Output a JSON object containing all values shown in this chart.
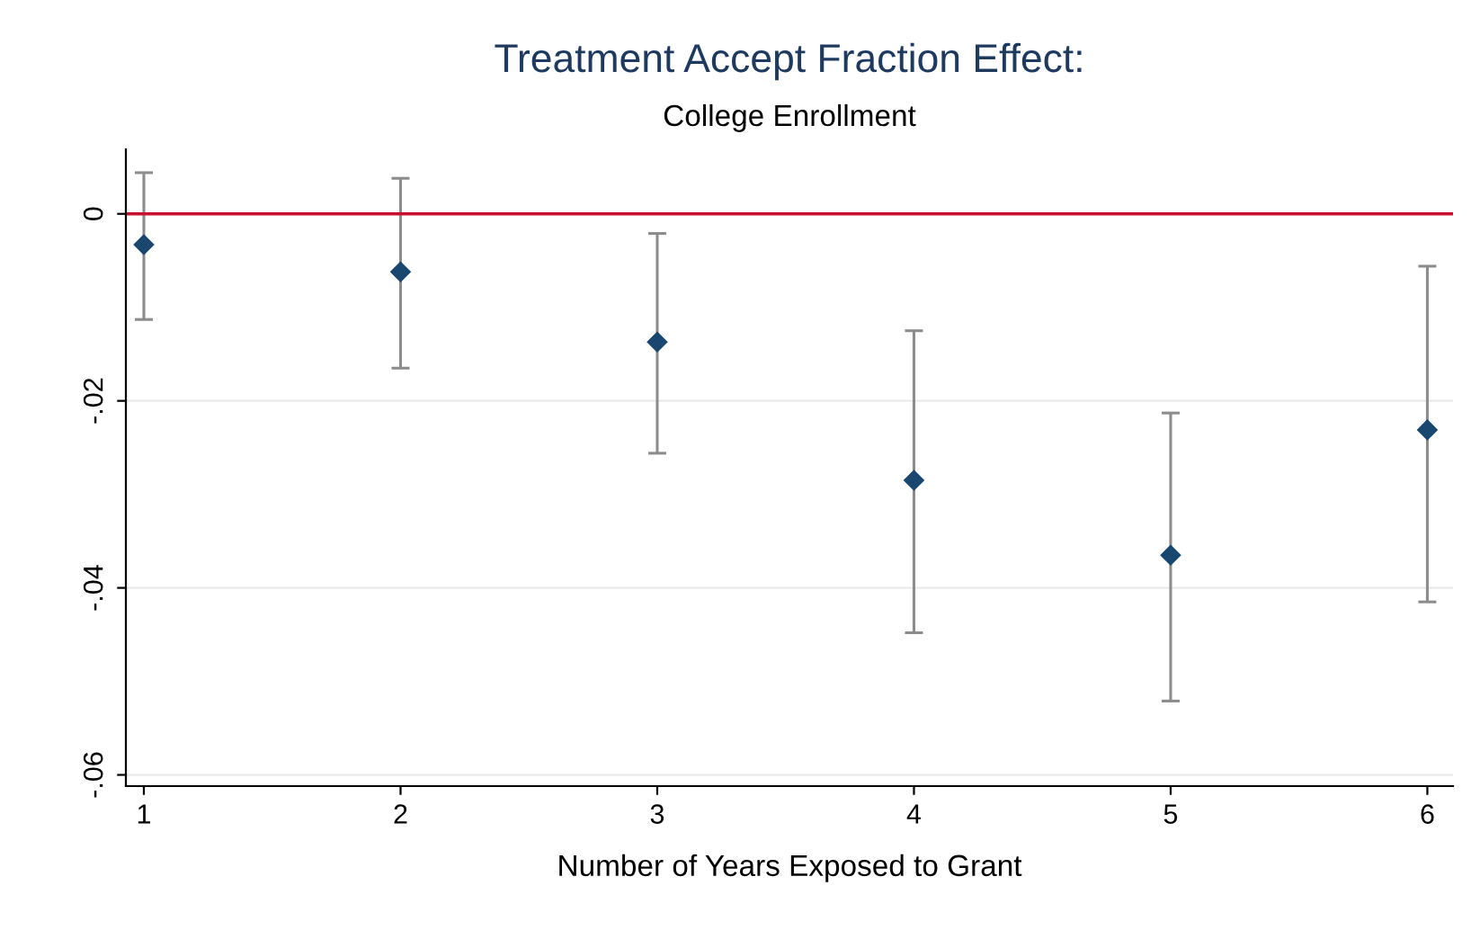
{
  "chart_data": {
    "type": "scatter",
    "title": "Treatment Accept Fraction Effect:",
    "subtitle": "College Enrollment",
    "xlabel": "Number of Years Exposed to Grant",
    "x": [
      1,
      2,
      3,
      4,
      5,
      6
    ],
    "series": [
      {
        "color": "#1a476f",
        "values": [
          -0.0033,
          -0.0062,
          -0.0137,
          -0.0285,
          -0.0365,
          -0.0231
        ],
        "errors": [
          [
            -0.0113,
            0.0044
          ],
          [
            -0.0165,
            0.0038
          ],
          [
            -0.0256,
            -0.0021
          ],
          [
            -0.0448,
            -0.0125
          ],
          [
            -0.0521,
            -0.0213
          ],
          [
            -0.0415,
            -0.0056
          ]
        ]
      }
    ],
    "xlim": [
      0.93,
      6.1
    ],
    "xticks": [
      1,
      2,
      3,
      4,
      5,
      6
    ],
    "ylim": [
      -0.0612,
      0.0069
    ],
    "yticks": [
      {
        "value": 0,
        "label": "0"
      },
      {
        "value": -0.02,
        "label": "-.02"
      },
      {
        "value": -0.04,
        "label": "-.04"
      },
      {
        "value": -0.06,
        "label": "-.06"
      }
    ],
    "ref_lines": [
      {
        "axis": "y",
        "value": 0,
        "color": "#c8102e"
      }
    ],
    "grid": "y",
    "marker": "diamond",
    "legend": false
  }
}
